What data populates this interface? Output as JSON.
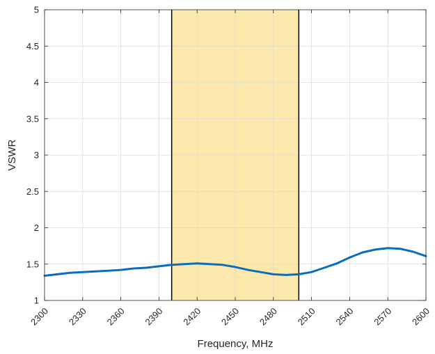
{
  "chart_data": {
    "type": "line",
    "xlabel": "Frequency, MHz",
    "ylabel": "VSWR",
    "xlim": [
      2300,
      2600
    ],
    "ylim": [
      1,
      5
    ],
    "x_ticks": [
      "2300",
      "2330",
      "2360",
      "2390",
      "2420",
      "2450",
      "2480",
      "2510",
      "2540",
      "2570",
      "2600"
    ],
    "y_ticks": [
      "1",
      "1.5",
      "2",
      "2.5",
      "3",
      "3.5",
      "4",
      "4.5",
      "5"
    ],
    "grid": true,
    "legend": "none",
    "highlight_band": {
      "x_start": 2400,
      "x_end": 2500,
      "fill_color": "#fbe8aa",
      "edge_color": "#000000"
    },
    "series": [
      {
        "color": "#0a6cbd",
        "x": [
          2300,
          2310,
          2320,
          2330,
          2340,
          2350,
          2360,
          2370,
          2380,
          2390,
          2400,
          2410,
          2420,
          2430,
          2440,
          2450,
          2460,
          2470,
          2480,
          2490,
          2500,
          2510,
          2520,
          2530,
          2540,
          2550,
          2560,
          2570,
          2580,
          2590,
          2600
        ],
        "y": [
          1.34,
          1.36,
          1.38,
          1.39,
          1.4,
          1.41,
          1.42,
          1.44,
          1.45,
          1.47,
          1.49,
          1.5,
          1.51,
          1.5,
          1.49,
          1.46,
          1.42,
          1.39,
          1.36,
          1.35,
          1.36,
          1.39,
          1.45,
          1.51,
          1.59,
          1.66,
          1.7,
          1.72,
          1.71,
          1.67,
          1.61
        ]
      }
    ]
  }
}
